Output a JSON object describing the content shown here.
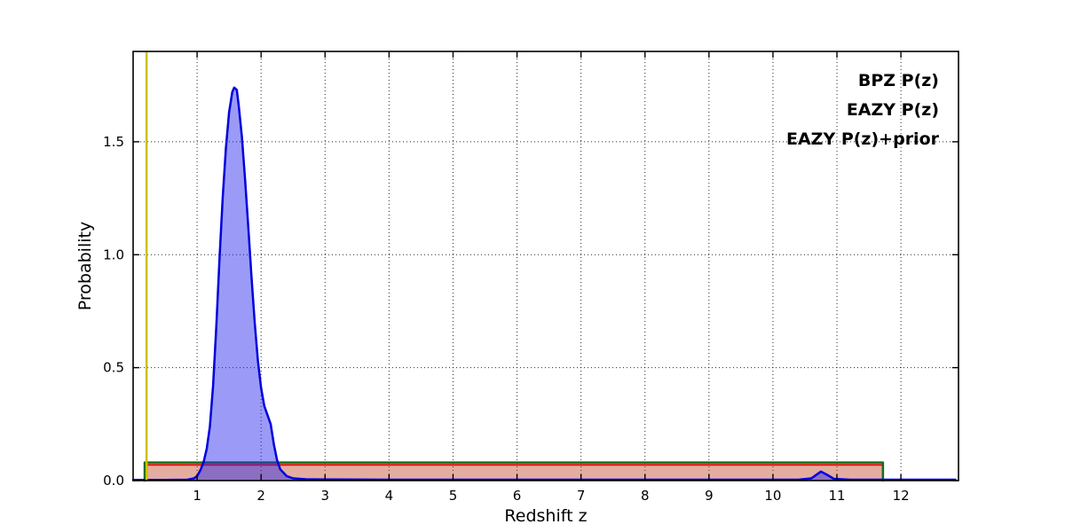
{
  "chart_data": {
    "type": "area",
    "title": "",
    "xlabel": "Redshift z",
    "ylabel": "Probability",
    "xlim": [
      0,
      12.9
    ],
    "ylim": [
      0,
      1.9
    ],
    "xticks": [
      1,
      2,
      3,
      4,
      5,
      6,
      7,
      8,
      9,
      10,
      11,
      12
    ],
    "xtick_labels": [
      "1",
      "2",
      "3",
      "4",
      "5",
      "6",
      "7",
      "8",
      "9",
      "10",
      "11",
      "12"
    ],
    "yticks": [
      0.0,
      0.5,
      1.0,
      1.5
    ],
    "ytick_labels": [
      "0.0",
      "0.5",
      "1.0",
      "1.5"
    ],
    "grid": "dotted",
    "grid_color": "#000000",
    "frame_color": "#000000",
    "legend": {
      "position": "top-right",
      "entries": [
        {
          "label": "BPZ P(z)",
          "color": "#0000ff"
        },
        {
          "label": "EAZY P(z)",
          "color": "#ff0000"
        },
        {
          "label": "EAZY P(z)+prior",
          "color": "#007700"
        }
      ]
    },
    "vline": {
      "x": 0.21,
      "color": "#cfc000",
      "name": "spec-z-marker"
    },
    "series": [
      {
        "name": "EAZY P(z)",
        "color": "#ee0000",
        "fill": "#ff0000",
        "fill_opacity": 0.3,
        "line_width": 2,
        "points": [
          [
            0.18,
            0.0
          ],
          [
            0.18,
            0.07
          ],
          [
            11.72,
            0.07
          ],
          [
            11.72,
            0.0
          ]
        ]
      },
      {
        "name": "EAZY P(z)+prior",
        "color": "#1a6b1a",
        "fill": "#228b22",
        "fill_opacity": 0.12,
        "line_width": 2.5,
        "points": [
          [
            0.18,
            0.0
          ],
          [
            0.18,
            0.08
          ],
          [
            11.72,
            0.08
          ],
          [
            11.72,
            0.0
          ]
        ]
      },
      {
        "name": "BPZ P(z)",
        "color": "#0000dd",
        "fill": "#2222ee",
        "fill_opacity": 0.45,
        "line_width": 2.5,
        "points": [
          [
            0.0,
            0.003
          ],
          [
            0.5,
            0.003
          ],
          [
            0.85,
            0.004
          ],
          [
            0.95,
            0.01
          ],
          [
            1.0,
            0.02
          ],
          [
            1.05,
            0.045
          ],
          [
            1.1,
            0.08
          ],
          [
            1.15,
            0.14
          ],
          [
            1.2,
            0.24
          ],
          [
            1.25,
            0.42
          ],
          [
            1.3,
            0.68
          ],
          [
            1.35,
            0.98
          ],
          [
            1.4,
            1.25
          ],
          [
            1.45,
            1.47
          ],
          [
            1.5,
            1.63
          ],
          [
            1.55,
            1.72
          ],
          [
            1.58,
            1.74
          ],
          [
            1.62,
            1.73
          ],
          [
            1.65,
            1.66
          ],
          [
            1.7,
            1.52
          ],
          [
            1.75,
            1.33
          ],
          [
            1.8,
            1.12
          ],
          [
            1.85,
            0.9
          ],
          [
            1.9,
            0.7
          ],
          [
            1.95,
            0.53
          ],
          [
            2.0,
            0.41
          ],
          [
            2.05,
            0.33
          ],
          [
            2.1,
            0.29
          ],
          [
            2.15,
            0.25
          ],
          [
            2.2,
            0.16
          ],
          [
            2.25,
            0.09
          ],
          [
            2.3,
            0.05
          ],
          [
            2.4,
            0.02
          ],
          [
            2.5,
            0.01
          ],
          [
            2.7,
            0.006
          ],
          [
            3.0,
            0.005
          ],
          [
            4.0,
            0.004
          ],
          [
            6.0,
            0.004
          ],
          [
            8.0,
            0.004
          ],
          [
            10.4,
            0.004
          ],
          [
            10.6,
            0.01
          ],
          [
            10.75,
            0.04
          ],
          [
            10.85,
            0.025
          ],
          [
            10.95,
            0.008
          ],
          [
            11.2,
            0.004
          ],
          [
            12.0,
            0.004
          ],
          [
            12.85,
            0.004
          ]
        ]
      }
    ]
  }
}
